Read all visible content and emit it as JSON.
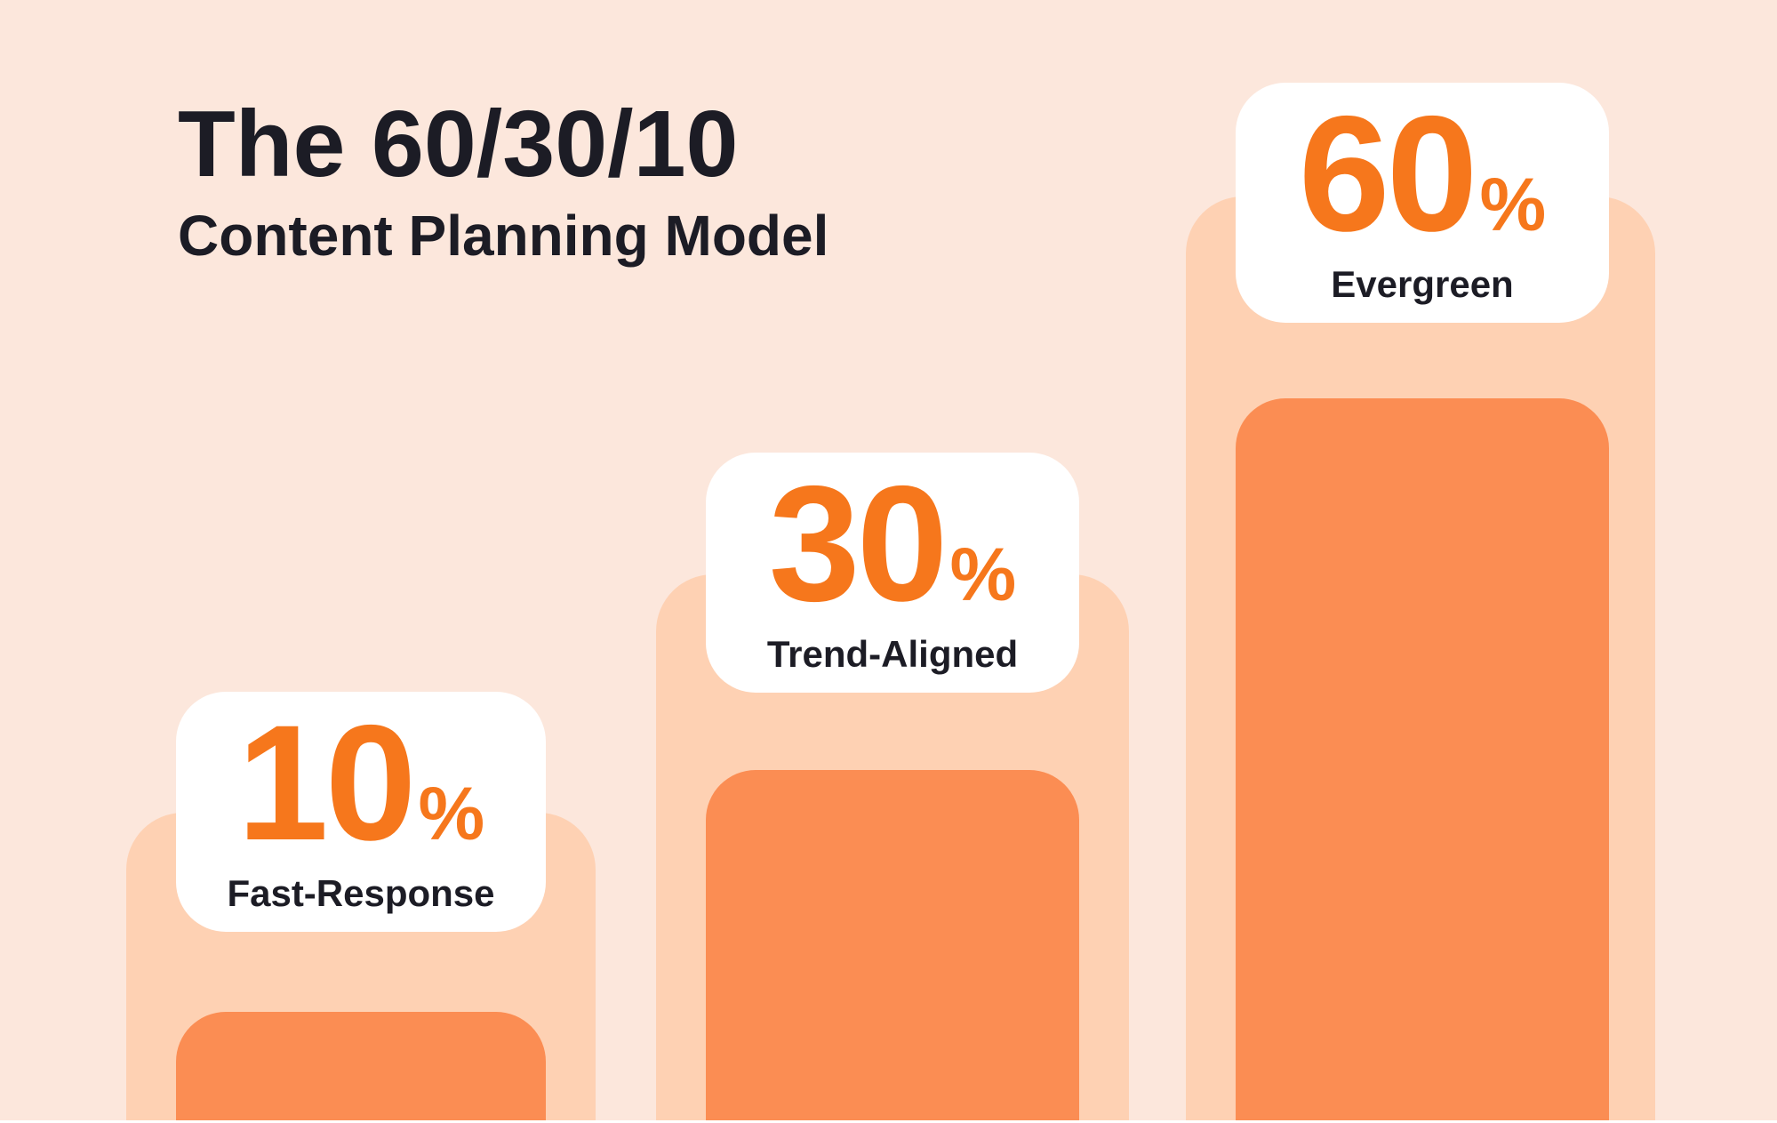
{
  "title": {
    "line1": "The 60/30/10",
    "line2": "Content Planning Model"
  },
  "chart_data": {
    "type": "bar",
    "title": "The 60/30/10 Content Planning Model",
    "categories": [
      "Fast-Response",
      "Trend-Aligned",
      "Evergreen"
    ],
    "values": [
      10,
      30,
      60
    ],
    "unit": "%",
    "xlabel": "",
    "ylabel": "",
    "ylim": [
      0,
      100
    ],
    "grid": false,
    "legend": "none",
    "orientation": "vertical",
    "annotations": [
      "10% Fast-Response",
      "30% Trend-Aligned",
      "60% Evergreen"
    ]
  },
  "bars": [
    {
      "value": "10",
      "unit": "%",
      "label": "Fast-Response"
    },
    {
      "value": "30",
      "unit": "%",
      "label": "Trend-Aligned"
    },
    {
      "value": "60",
      "unit": "%",
      "label": "Evergreen"
    }
  ],
  "colors": {
    "background": "#FCE7DC",
    "bar_track": "#FED1B3",
    "bar_fill": "#FB8D53",
    "accent_text": "#F6771C",
    "dark_text": "#1C1C25",
    "card": "#FFFFFF"
  }
}
